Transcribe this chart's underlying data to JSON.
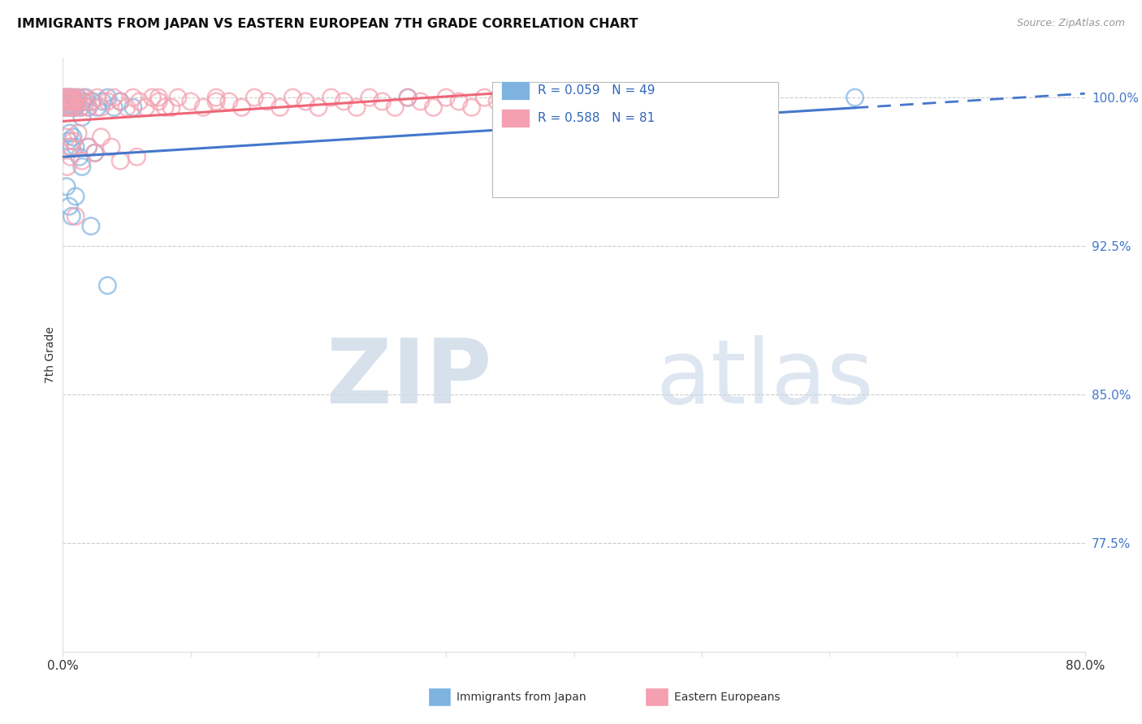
{
  "title": "IMMIGRANTS FROM JAPAN VS EASTERN EUROPEAN 7TH GRADE CORRELATION CHART",
  "source": "Source: ZipAtlas.com",
  "ylabel": "7th Grade",
  "right_yticks": [
    77.5,
    85.0,
    92.5,
    100.0
  ],
  "right_ytick_labels": [
    "77.5%",
    "85.0%",
    "92.5%",
    "100.0%"
  ],
  "legend_japan_R": "R = 0.059",
  "legend_japan_N": "N = 49",
  "legend_eastern_R": "R = 0.588",
  "legend_eastern_N": "N = 81",
  "japan_color": "#7EB3E0",
  "eastern_color": "#F4A0B0",
  "japan_line_color": "#4477CC",
  "eastern_line_color": "#EE6677",
  "watermark_zip_color": "#D0DCE8",
  "watermark_atlas_color": "#C8D8E8",
  "xlim": [
    0,
    80
  ],
  "ylim": [
    72,
    102
  ],
  "japan_line_x0": 0,
  "japan_line_y0": 97.0,
  "japan_line_x1": 80,
  "japan_line_y1": 100.2,
  "eastern_line_x0": 0,
  "eastern_line_y0": 98.8,
  "eastern_line_x1": 36,
  "eastern_line_y1": 100.3,
  "japan_scatter_x": [
    0.1,
    0.15,
    0.2,
    0.25,
    0.3,
    0.35,
    0.4,
    0.45,
    0.5,
    0.55,
    0.6,
    0.65,
    0.7,
    0.75,
    0.8,
    0.85,
    0.9,
    1.0,
    1.1,
    1.2,
    1.4,
    1.6,
    1.8,
    2.0,
    2.3,
    2.7,
    3.1,
    3.5,
    4.0,
    4.5,
    5.5,
    1.5,
    0.45,
    0.55,
    0.65,
    0.8,
    1.0,
    1.3,
    2.0,
    2.5,
    0.3,
    0.5,
    0.7,
    1.0,
    1.5,
    2.2,
    3.5,
    27.0,
    62.0
  ],
  "japan_scatter_y": [
    99.5,
    99.8,
    100.0,
    99.5,
    99.8,
    100.0,
    99.5,
    99.8,
    100.0,
    99.5,
    99.8,
    100.0,
    99.5,
    99.8,
    100.0,
    99.5,
    99.8,
    99.5,
    99.8,
    100.0,
    99.5,
    99.8,
    100.0,
    99.5,
    99.8,
    99.5,
    99.8,
    100.0,
    99.5,
    99.8,
    99.5,
    99.0,
    97.8,
    98.2,
    97.5,
    98.0,
    97.5,
    97.0,
    97.5,
    97.2,
    95.5,
    94.5,
    94.0,
    95.0,
    96.5,
    93.5,
    90.5,
    100.0,
    100.0
  ],
  "eastern_scatter_x": [
    0.1,
    0.15,
    0.2,
    0.25,
    0.3,
    0.35,
    0.4,
    0.45,
    0.5,
    0.55,
    0.6,
    0.65,
    0.7,
    0.75,
    0.8,
    0.9,
    1.0,
    1.1,
    1.2,
    1.4,
    1.6,
    1.8,
    2.0,
    2.3,
    2.7,
    3.0,
    3.5,
    4.0,
    4.5,
    5.0,
    5.5,
    6.0,
    6.5,
    7.0,
    7.5,
    8.0,
    9.0,
    10.0,
    11.0,
    12.0,
    13.0,
    14.0,
    15.0,
    16.0,
    17.0,
    18.0,
    19.0,
    20.0,
    21.0,
    22.0,
    23.0,
    24.0,
    25.0,
    26.0,
    27.0,
    28.0,
    29.0,
    30.0,
    31.0,
    32.0,
    33.0,
    34.0,
    35.0,
    36.0,
    0.3,
    0.5,
    0.8,
    1.2,
    2.0,
    3.0,
    0.35,
    0.6,
    1.5,
    2.5,
    3.8,
    4.5,
    5.8,
    1.0,
    7.5,
    8.5,
    12.0
  ],
  "eastern_scatter_y": [
    99.8,
    100.0,
    99.5,
    100.0,
    99.8,
    100.0,
    99.5,
    99.8,
    100.0,
    99.5,
    99.8,
    100.0,
    99.5,
    99.8,
    100.0,
    99.8,
    99.5,
    100.0,
    99.8,
    99.5,
    100.0,
    99.8,
    99.5,
    99.8,
    100.0,
    99.5,
    99.8,
    100.0,
    99.8,
    99.5,
    100.0,
    99.8,
    99.5,
    100.0,
    99.8,
    99.5,
    100.0,
    99.8,
    99.5,
    100.0,
    99.8,
    99.5,
    100.0,
    99.8,
    99.5,
    100.0,
    99.8,
    99.5,
    100.0,
    99.8,
    99.5,
    100.0,
    99.8,
    99.5,
    100.0,
    99.8,
    99.5,
    100.0,
    99.8,
    99.5,
    100.0,
    99.8,
    99.5,
    100.0,
    98.0,
    97.5,
    97.8,
    98.2,
    97.5,
    98.0,
    96.5,
    97.0,
    96.8,
    97.2,
    97.5,
    96.8,
    97.0,
    94.0,
    100.0,
    99.5,
    99.8
  ]
}
